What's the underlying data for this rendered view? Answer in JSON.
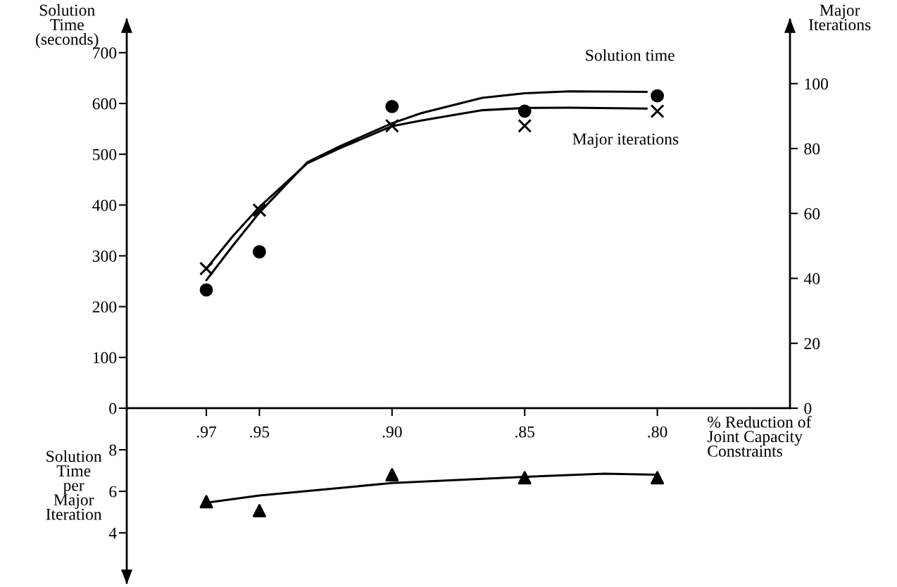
{
  "chart_data": [
    {
      "type": "scatter",
      "ylabel": "Solution\nTime\n(seconds)",
      "y2label": "Major\nIterations",
      "xlabel": "% Reduction of\nJoint Capacity\nConstraints",
      "xlim": [
        1.0,
        0.75
      ],
      "xticks": [
        {
          "value": 0.97,
          "label": ".97"
        },
        {
          "value": 0.95,
          "label": ".95"
        },
        {
          "value": 0.9,
          "label": ".90"
        },
        {
          "value": 0.85,
          "label": ".85"
        },
        {
          "value": 0.8,
          "label": ".80"
        }
      ],
      "ylim": [
        0,
        765
      ],
      "yticks": [
        0,
        100,
        200,
        300,
        400,
        500,
        600,
        700
      ],
      "y2lim": [
        0,
        119.7
      ],
      "y2ticks": [
        0,
        20,
        40,
        60,
        80,
        100
      ],
      "series": [
        {
          "name": "Solution time",
          "color": "#000000",
          "marker": "circle",
          "x": [
            0.97,
            0.95,
            0.9,
            0.85,
            0.8
          ],
          "values": [
            233,
            308,
            594,
            585,
            615
          ]
        },
        {
          "name": "Major iterations",
          "color": "#000000",
          "marker": "cross",
          "axis": "y2",
          "x": [
            0.97,
            0.95,
            0.9,
            0.85,
            0.8
          ],
          "values": [
            43,
            61,
            87,
            87,
            91.5
          ]
        },
        {
          "type": "line",
          "color": "#000000",
          "marker": "none",
          "x": [
            0.97,
            0.96,
            0.95,
            0.932,
            0.92,
            0.9,
            0.889,
            0.866,
            0.85,
            0.833,
            0.804
          ],
          "values": [
            252,
            320,
            385,
            484,
            515,
            561,
            581,
            611,
            620,
            624,
            623
          ]
        },
        {
          "type": "line",
          "color": "#000000",
          "marker": "none",
          "axis": "y2",
          "x": [
            0.97,
            0.96,
            0.95,
            0.932,
            0.92,
            0.9,
            0.889,
            0.866,
            0.85,
            0.833,
            0.804
          ],
          "values": [
            43,
            53,
            62,
            75.4,
            80,
            86.9,
            88.6,
            91.8,
            92.5,
            92.6,
            92.3
          ]
        }
      ]
    },
    {
      "type": "scatter",
      "ylabel": "Solution\nTime\nper\nMajor\nIteration",
      "tick_labels": "y",
      "xlim": [
        1.0,
        0.75
      ],
      "ylim": [
        1.6,
        10
      ],
      "yticks": [
        4,
        6,
        8
      ],
      "series": [
        {
          "color": "#000000",
          "marker": "triangle",
          "x": [
            0.97,
            0.95,
            0.9,
            0.85,
            0.8
          ],
          "values": [
            5.5,
            5.07,
            6.8,
            6.65,
            6.65
          ]
        },
        {
          "type": "line",
          "color": "#000000",
          "marker": "none",
          "x": [
            0.97,
            0.95,
            0.9,
            0.85,
            0.82,
            0.8
          ],
          "values": [
            5.45,
            5.8,
            6.4,
            6.7,
            6.85,
            6.8
          ]
        }
      ]
    }
  ]
}
